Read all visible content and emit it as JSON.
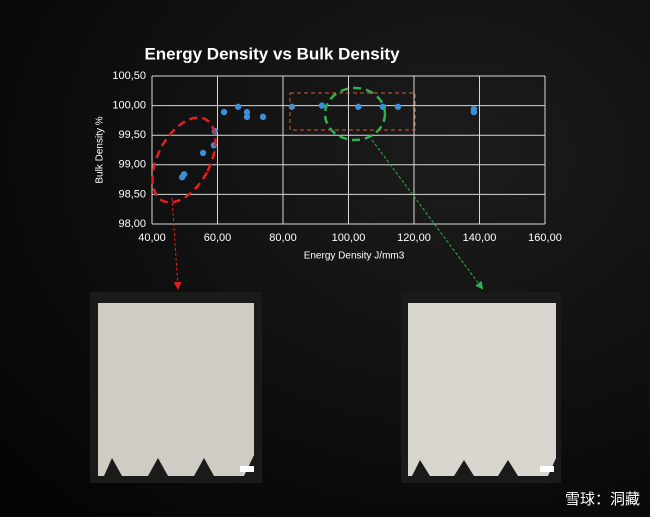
{
  "chart_data": {
    "type": "scatter",
    "title": "Energy Density vs Bulk Density",
    "x_label": "Energy Density J/mm3",
    "y_label": "Bulk Density %",
    "series": [
      {
        "color": "#3b8fd8",
        "x": [
          49.2,
          49.8,
          55.6,
          58.9,
          59.2,
          62.0,
          66.3,
          69.0,
          69.0,
          73.9,
          82.7,
          91.9,
          103.0,
          110.5,
          115.1,
          138.3,
          138.3
        ],
        "values": [
          98.79,
          98.84,
          99.2,
          99.33,
          99.57,
          99.89,
          99.98,
          99.89,
          99.81,
          99.81,
          99.98,
          100.0,
          99.98,
          99.98,
          99.98,
          99.94,
          99.89
        ]
      }
    ],
    "xlim": [
      40,
      160
    ],
    "xticks": [
      {
        "value": 40,
        "label": "40,00"
      },
      {
        "value": 60,
        "label": "60,00"
      },
      {
        "value": 80,
        "label": "80,00"
      },
      {
        "value": 100,
        "label": "100,00"
      },
      {
        "value": 120,
        "label": "120,00"
      },
      {
        "value": 140,
        "label": "140,00"
      },
      {
        "value": 160,
        "label": "160,00"
      }
    ],
    "ylim": [
      98,
      100.5
    ],
    "yticks": [
      {
        "value": 98,
        "label": "98,00"
      },
      {
        "value": 98.5,
        "label": "98,50"
      },
      {
        "value": 99,
        "label": "99,00"
      },
      {
        "value": 99.5,
        "label": "99,50"
      },
      {
        "value": 100,
        "label": "100,00"
      },
      {
        "value": 100.5,
        "label": "100,50"
      }
    ],
    "grid": true
  },
  "watermark": "雪球：洞藏"
}
